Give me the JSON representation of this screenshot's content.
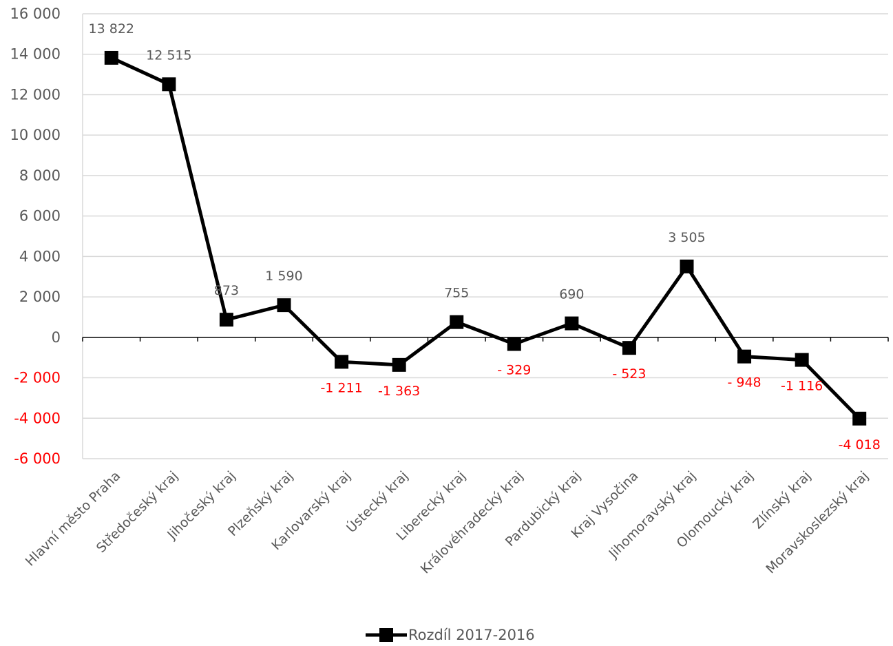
{
  "chart_data": {
    "type": "line",
    "categories": [
      "Hlavní město Praha",
      "Středočeský kraj",
      "Jihočeský kraj",
      "Plzeňský kraj",
      "Karlovarský kraj",
      "Ústecký kraj",
      "Liberecký kraj",
      "Královéhradecký kraj",
      "Pardubický kraj",
      "Kraj Vysočina",
      "Jihomoravský kraj",
      "Olomoucký kraj",
      "Zlínský kraj",
      "Moravskoslezský kraj"
    ],
    "series": [
      {
        "name": "Rozdíl 2017-2016",
        "values": [
          13822,
          12515,
          873,
          1590,
          -1211,
          -1363,
          755,
          -329,
          690,
          -523,
          3505,
          -948,
          -1116,
          -4018
        ],
        "data_labels": [
          "13 822",
          "12 515",
          "873",
          "1 590",
          "-1 211",
          "-1 363",
          "755",
          "- 329",
          "690",
          "- 523",
          "3 505",
          "- 948",
          "-1 116",
          "-4 018"
        ]
      }
    ],
    "ylim": [
      -6000,
      16000
    ],
    "yticks": [
      16000,
      14000,
      12000,
      10000,
      8000,
      6000,
      4000,
      2000,
      0,
      -2000,
      -4000,
      -6000
    ],
    "ytick_labels": [
      "16 000",
      "14 000",
      "12 000",
      "10 000",
      "8 000",
      "6 000",
      "4 000",
      "2 000",
      "0",
      "-2 000",
      "-4 000",
      "-6 000"
    ],
    "grid": true,
    "legend_position": "bottom",
    "colors": {
      "line": "#000000",
      "positive_text": "#595959",
      "negative_text": "#ff0000",
      "grid": "#d9d9d9"
    }
  }
}
